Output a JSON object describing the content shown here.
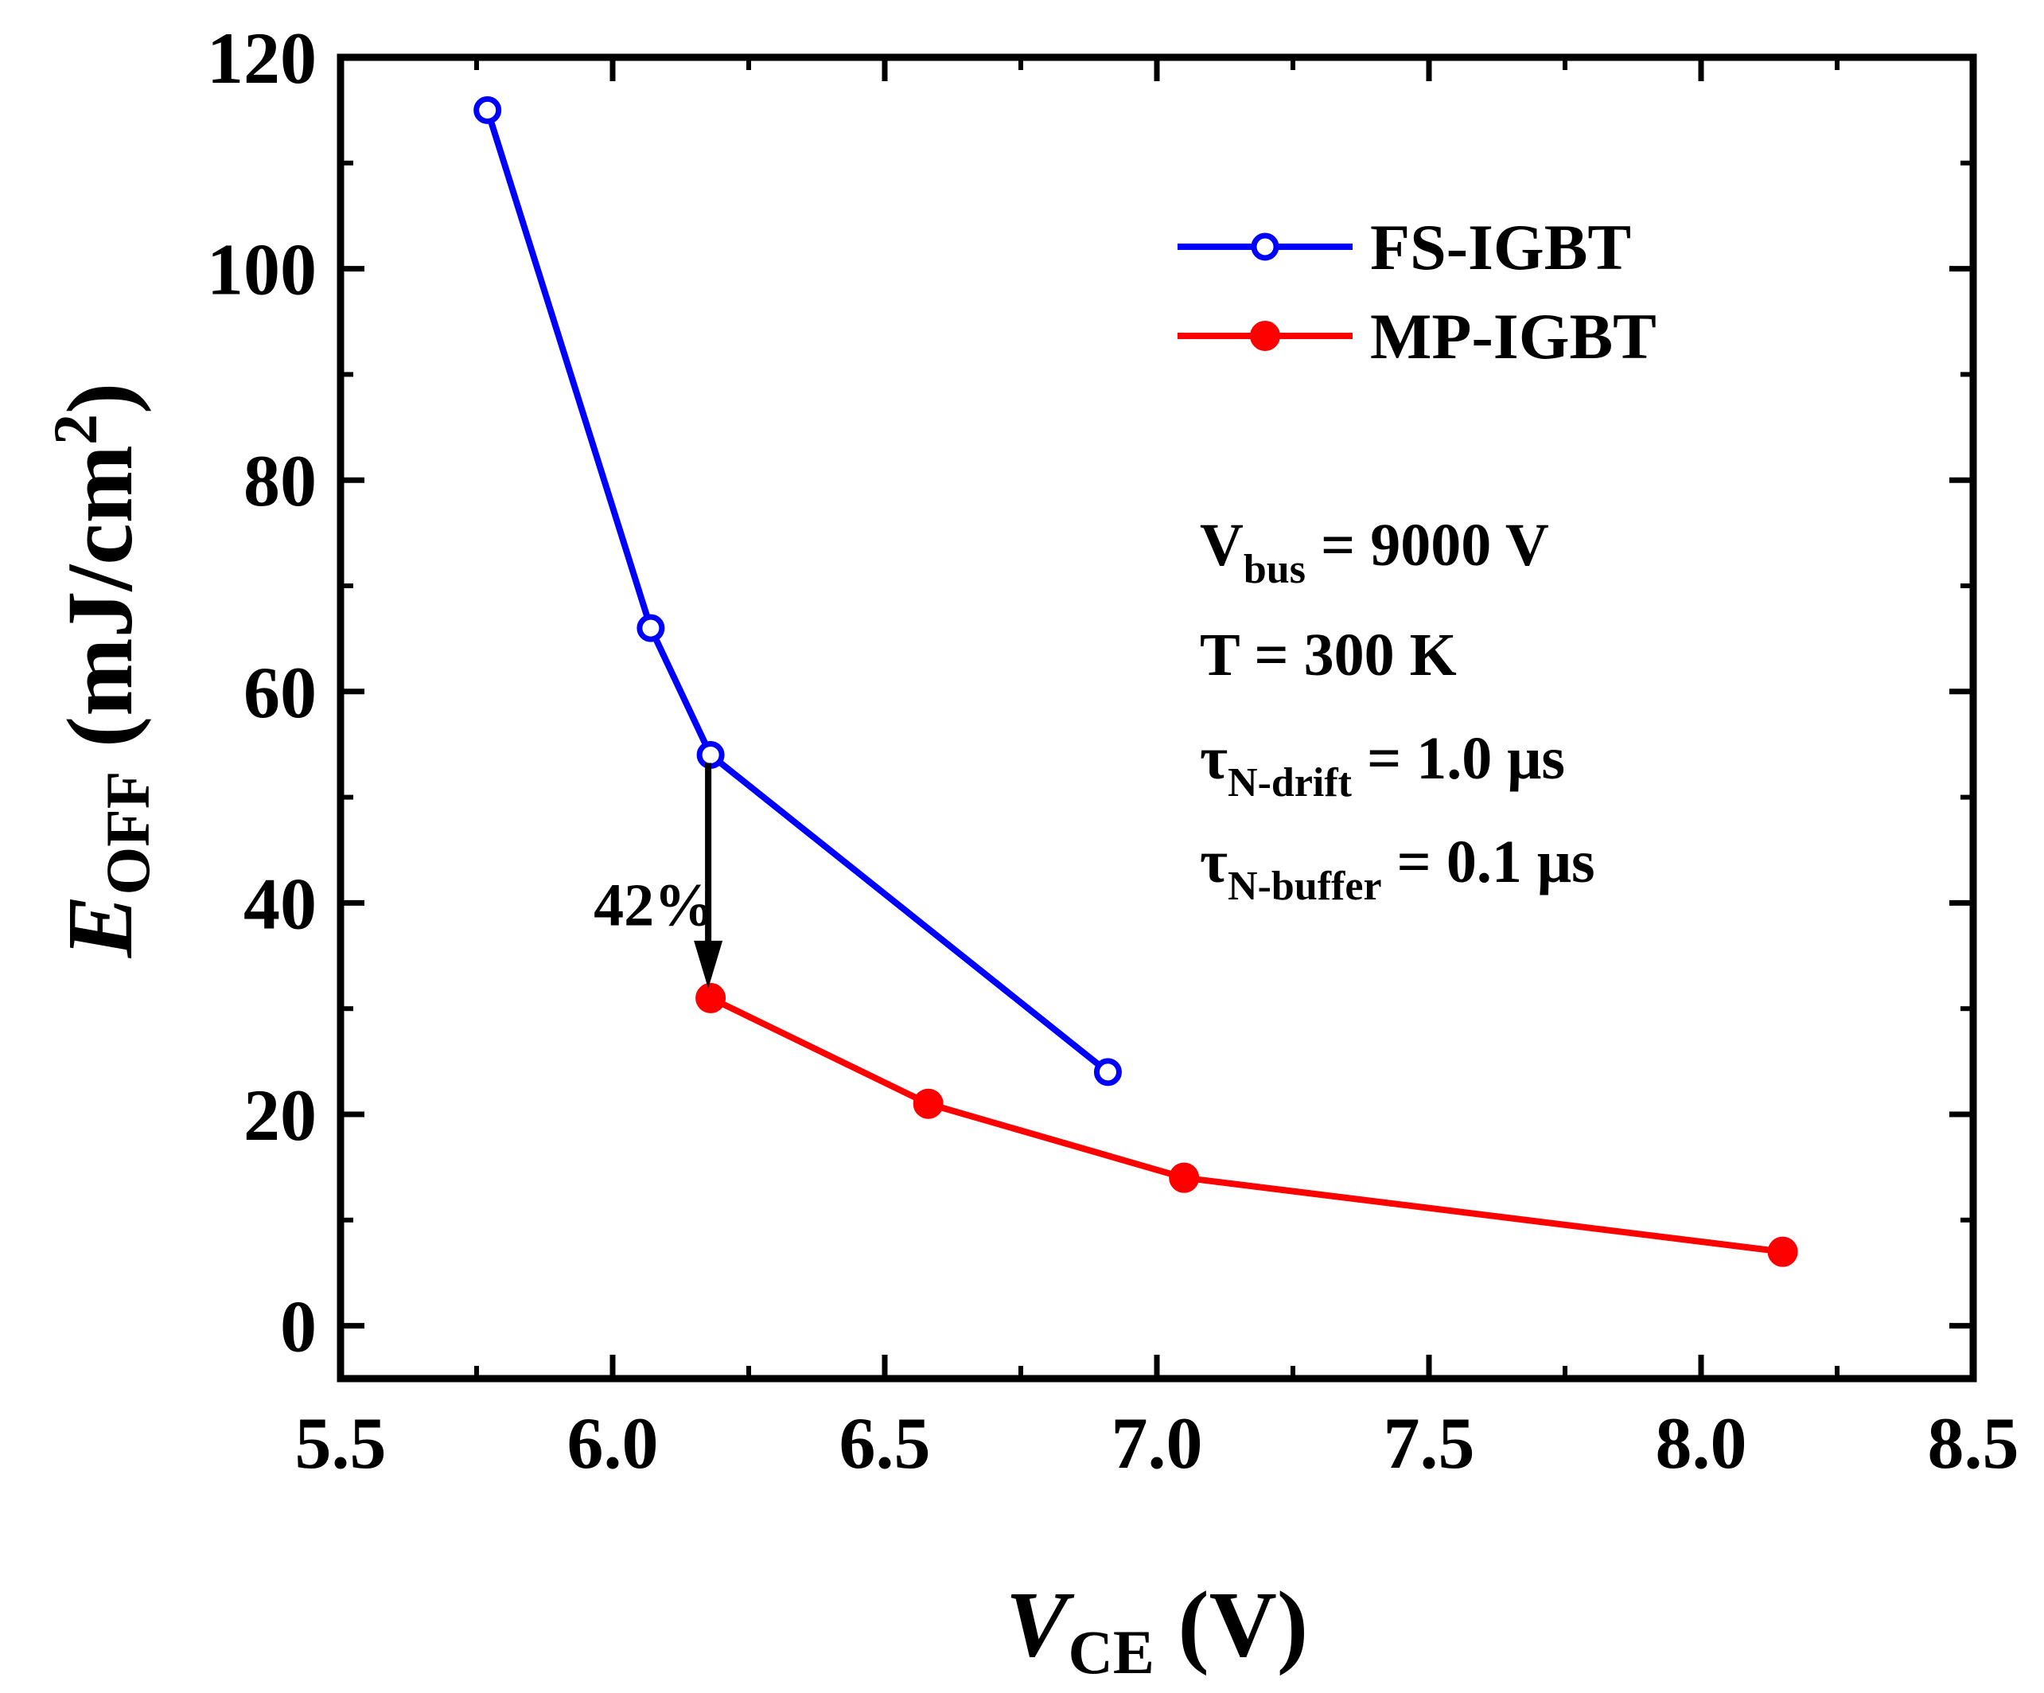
{
  "chart_data": {
    "type": "line",
    "title": "",
    "xlabel": {
      "main": "V",
      "sub": "CE",
      "unit": " (V)"
    },
    "ylabel": {
      "main": "E",
      "sub": "OFF",
      "unit_pre": " (mJ/cm",
      "unit_sup": "2",
      "unit_post": ")"
    },
    "xlim": [
      5.5,
      8.5
    ],
    "ylim": [
      -5,
      120
    ],
    "xticks": [
      "5.5",
      "6.0",
      "6.5",
      "7.0",
      "7.5",
      "8.0",
      "8.5"
    ],
    "xtick_values": [
      5.5,
      6.0,
      6.5,
      7.0,
      7.5,
      8.0,
      8.5
    ],
    "yticks": [
      "0",
      "20",
      "40",
      "60",
      "80",
      "100",
      "120"
    ],
    "ytick_values": [
      0,
      20,
      40,
      60,
      80,
      100,
      120
    ],
    "grid": false,
    "legend_position": "top-right",
    "series": [
      {
        "name": "FS-IGBT",
        "color": "#0000ff",
        "marker": "open-circle",
        "x": [
          5.77,
          6.07,
          6.18,
          6.91
        ],
        "y": [
          115,
          66,
          54,
          24
        ]
      },
      {
        "name": "MP-IGBT",
        "color": "#ff0000",
        "marker": "filled-circle",
        "x": [
          6.18,
          6.58,
          7.05,
          8.15
        ],
        "y": [
          31,
          21,
          14,
          7
        ]
      }
    ],
    "annotations": {
      "arrow": {
        "label": "42%",
        "x": 6.18,
        "y_from": 54,
        "y_to": 31
      },
      "conditions": [
        {
          "main": "V",
          "sub": "bus",
          "rest": " = 9000 V"
        },
        {
          "main": "T = 300 K",
          "sub": "",
          "rest": ""
        },
        {
          "main": "τ",
          "sub": "N-drift",
          "rest": " = 1.0 μs"
        },
        {
          "main": "τ",
          "sub": "N-buffer",
          "rest": " = 0.1 μs"
        }
      ]
    }
  }
}
